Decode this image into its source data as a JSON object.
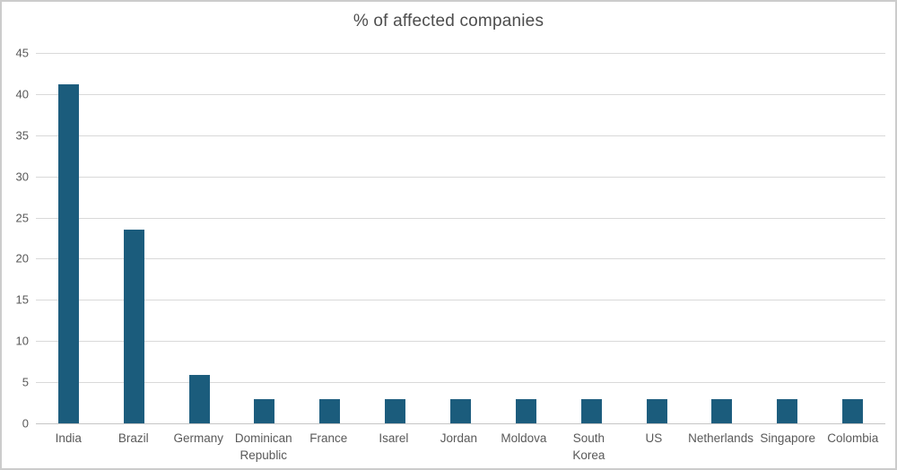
{
  "chart_data": {
    "type": "bar",
    "title": "% of affected companies",
    "categories": [
      "India",
      "Brazil",
      "Germany",
      "Dominican Republic",
      "France",
      "Isarel",
      "Jordan",
      "Moldova",
      "South Korea",
      "US",
      "Netherlands",
      "Singapore",
      "Colombia"
    ],
    "values": [
      41.2,
      23.5,
      5.9,
      2.9,
      2.9,
      2.9,
      2.9,
      2.9,
      2.9,
      2.9,
      2.9,
      2.9,
      2.9
    ],
    "xlabel": "",
    "ylabel": "",
    "ylim": [
      0,
      45
    ],
    "ytick_step": 5,
    "grid": true,
    "legend_position": "none",
    "bar_color": "#1b5c7c",
    "gridline_color": "#d9d9d9",
    "axis_label_color": "#595959",
    "title_color": "#4d4d4d"
  }
}
